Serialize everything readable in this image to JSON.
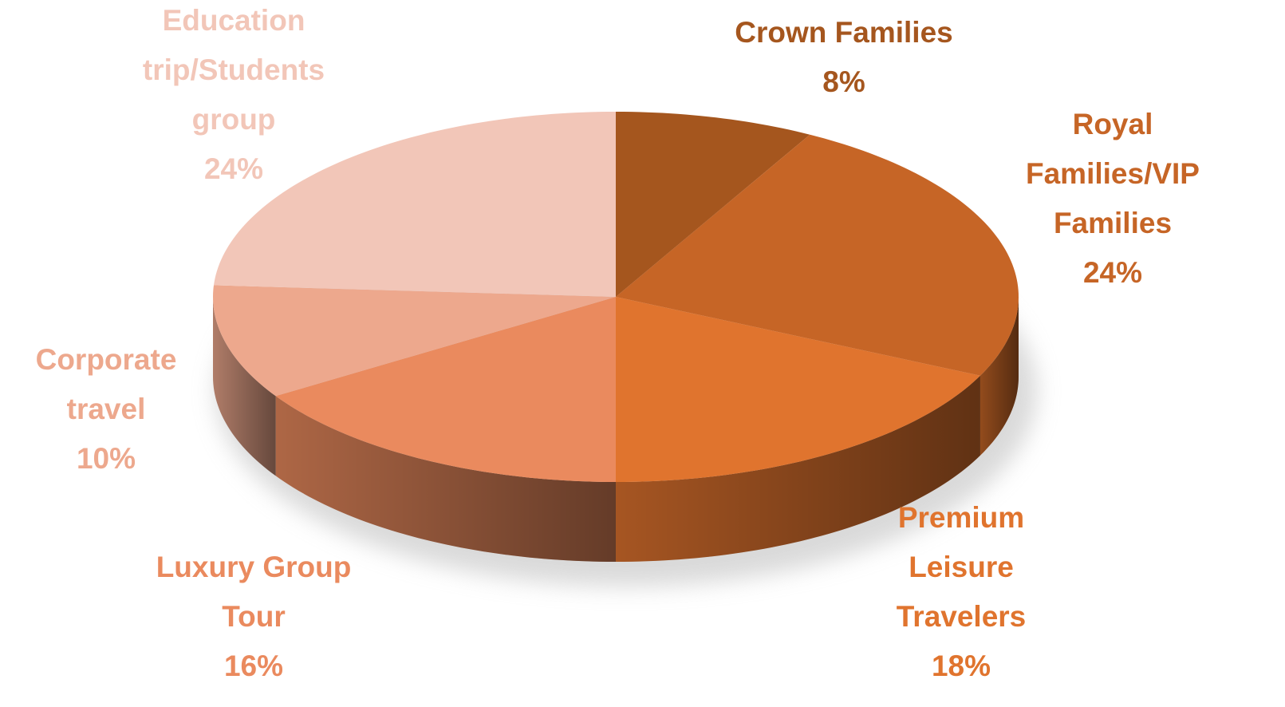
{
  "chart_data": {
    "type": "pie",
    "categories": [
      "Crown Families",
      "Royal Families/VIP Families",
      "Premium Leisure Travelers",
      "Luxury Group Tour",
      "Corporate travel",
      "Education trip/Students group"
    ],
    "values": [
      8,
      24,
      18,
      16,
      10,
      24
    ],
    "value_labels": [
      "8%",
      "24%",
      "18%",
      "16%",
      "10%",
      "24%"
    ],
    "colors": [
      "#a5561e",
      "#c66526",
      "#e0742e",
      "#ea8a5e",
      "#eda88d",
      "#f2c6b8"
    ]
  }
}
